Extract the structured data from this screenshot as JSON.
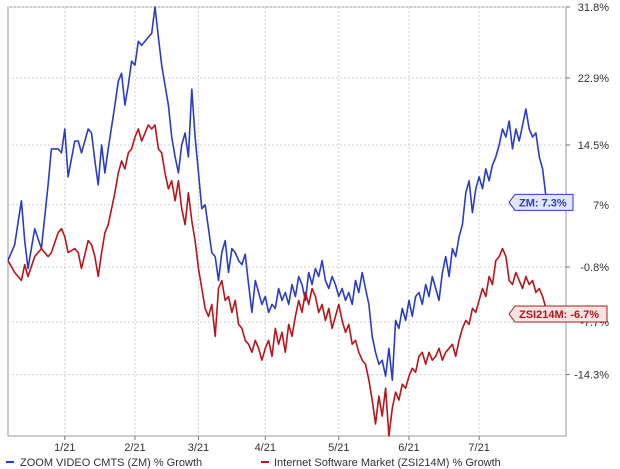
{
  "chart_data": {
    "type": "line",
    "title": "",
    "xlabel": "",
    "ylabel": "",
    "x_ticks": [
      "1/21",
      "2/21",
      "3/21",
      "4/21",
      "5/21",
      "6/21",
      "7/21"
    ],
    "y_ticks": [
      "31.8%",
      "22.9%",
      "14.5%",
      "7%",
      "-0.8%",
      "-7.7%",
      "-14.3%"
    ],
    "ylim": [
      -22.0,
      31.8
    ],
    "grid": true,
    "legend_position": "bottom",
    "series": [
      {
        "name": "ZOOM VIDEO CMTS (ZM) % Growth",
        "color": "#2a3cc7",
        "last_label": "ZM: 7.3%",
        "points": [
          [
            0,
            0.0
          ],
          [
            2,
            2.0
          ],
          [
            4,
            7.5
          ],
          [
            5,
            2.5
          ],
          [
            6,
            -1.0
          ],
          [
            8,
            4.0
          ],
          [
            10,
            1.5
          ],
          [
            12,
            9.5
          ],
          [
            13,
            14.0
          ],
          [
            15,
            14.0
          ],
          [
            16,
            13.5
          ],
          [
            17,
            16.5
          ],
          [
            18,
            10.5
          ],
          [
            20,
            15.0
          ],
          [
            21,
            15.0
          ],
          [
            22,
            13.5
          ],
          [
            24,
            16.5
          ],
          [
            25,
            16.0
          ],
          [
            26,
            12.5
          ],
          [
            27,
            9.5
          ],
          [
            28,
            14.5
          ],
          [
            29,
            11.0
          ],
          [
            30,
            14.0
          ],
          [
            32,
            19.5
          ],
          [
            33,
            22.5
          ],
          [
            34,
            23.5
          ],
          [
            35,
            19.5
          ],
          [
            36,
            22.0
          ],
          [
            37,
            25.0
          ],
          [
            38,
            24.5
          ],
          [
            39,
            27.5
          ],
          [
            40,
            27.0
          ],
          [
            42,
            28.0
          ],
          [
            43,
            28.5
          ],
          [
            44,
            31.8
          ],
          [
            45,
            28.0
          ],
          [
            46,
            24.5
          ],
          [
            47,
            22.0
          ],
          [
            48,
            19.5
          ],
          [
            49,
            15.5
          ],
          [
            50,
            13.0
          ],
          [
            51,
            11.0
          ],
          [
            52,
            14.5
          ],
          [
            53,
            16.0
          ],
          [
            54,
            13.0
          ],
          [
            55,
            21.5
          ],
          [
            56,
            15.5
          ],
          [
            57,
            11.0
          ],
          [
            58,
            6.5
          ],
          [
            59,
            7.0
          ],
          [
            60,
            4.0
          ],
          [
            61,
            1.0
          ],
          [
            62,
            0.5
          ],
          [
            63,
            -2.5
          ],
          [
            64,
            1.0
          ],
          [
            65,
            2.5
          ],
          [
            66,
            -1.5
          ],
          [
            67,
            1.5
          ],
          [
            68,
            1.0
          ],
          [
            69,
            0.0
          ],
          [
            70,
            -0.5
          ],
          [
            71,
            0.8
          ],
          [
            72,
            -3.0
          ],
          [
            73,
            -6.5
          ],
          [
            74,
            -2.5
          ],
          [
            75,
            -4.0
          ],
          [
            76,
            -5.5
          ],
          [
            77,
            -4.5
          ],
          [
            78,
            -6.5
          ],
          [
            79,
            -5.5
          ],
          [
            80,
            -6.0
          ],
          [
            81,
            -3.5
          ],
          [
            82,
            -5.0
          ],
          [
            83,
            -4.0
          ],
          [
            84,
            -5.5
          ],
          [
            85,
            -3.0
          ],
          [
            86,
            -4.5
          ],
          [
            87,
            -2.0
          ],
          [
            88,
            -3.0
          ],
          [
            89,
            -5.0
          ],
          [
            90,
            -1.5
          ],
          [
            91,
            -3.0
          ],
          [
            92,
            -1.0
          ],
          [
            93,
            -2.0
          ],
          [
            94,
            0.0
          ],
          [
            95,
            -2.5
          ],
          [
            96,
            -3.5
          ],
          [
            97,
            -2.0
          ],
          [
            98,
            -3.0
          ],
          [
            99,
            -4.5
          ],
          [
            100,
            -3.5
          ],
          [
            101,
            -5.0
          ],
          [
            102,
            -4.0
          ],
          [
            103,
            -5.5
          ],
          [
            104,
            -2.5
          ],
          [
            105,
            -4.0
          ],
          [
            106,
            -1.5
          ],
          [
            107,
            -3.5
          ],
          [
            108,
            -5.5
          ],
          [
            109,
            -9.5
          ],
          [
            110,
            -11.5
          ],
          [
            111,
            -13.0
          ],
          [
            112,
            -12.5
          ],
          [
            113,
            -14.5
          ],
          [
            114,
            -11.0
          ],
          [
            115,
            -15.0
          ],
          [
            116,
            -7.5
          ],
          [
            117,
            -8.5
          ],
          [
            118,
            -6.0
          ],
          [
            119,
            -7.5
          ],
          [
            120,
            -5.0
          ],
          [
            121,
            -7.0
          ],
          [
            122,
            -4.5
          ],
          [
            123,
            -4.0
          ],
          [
            124,
            -5.5
          ],
          [
            125,
            -3.0
          ],
          [
            126,
            -4.5
          ],
          [
            127,
            -2.0
          ],
          [
            128,
            -3.5
          ],
          [
            129,
            -5.0
          ],
          [
            130,
            -1.5
          ],
          [
            131,
            0.5
          ],
          [
            132,
            -2.0
          ],
          [
            133,
            1.5
          ],
          [
            134,
            0.5
          ],
          [
            135,
            3.0
          ],
          [
            136,
            4.5
          ],
          [
            137,
            8.5
          ],
          [
            138,
            10.0
          ],
          [
            139,
            6.0
          ],
          [
            140,
            9.0
          ],
          [
            141,
            10.5
          ],
          [
            142,
            9.0
          ],
          [
            143,
            11.5
          ],
          [
            144,
            10.0
          ],
          [
            145,
            12.0
          ],
          [
            146,
            13.0
          ],
          [
            147,
            14.5
          ],
          [
            148,
            16.5
          ],
          [
            149,
            15.5
          ],
          [
            150,
            17.5
          ],
          [
            151,
            14.0
          ],
          [
            152,
            16.5
          ],
          [
            153,
            15.0
          ],
          [
            154,
            17.0
          ],
          [
            155,
            19.0
          ],
          [
            156,
            16.5
          ],
          [
            157,
            15.5
          ],
          [
            158,
            16.0
          ],
          [
            159,
            13.0
          ],
          [
            160,
            11.5
          ],
          [
            161,
            8.0
          ],
          [
            162,
            7.3
          ]
        ]
      },
      {
        "name": "Internet Software Market (ZSI214M) % Growth",
        "color": "#b9141a",
        "last_label": "ZSI214M: -6.7%",
        "points": [
          [
            0,
            0.0
          ],
          [
            2,
            -1.5
          ],
          [
            4,
            -2.5
          ],
          [
            5,
            -0.5
          ],
          [
            6,
            -2.0
          ],
          [
            8,
            0.5
          ],
          [
            10,
            1.5
          ],
          [
            12,
            0.5
          ],
          [
            13,
            1.0
          ],
          [
            15,
            3.5
          ],
          [
            16,
            4.0
          ],
          [
            17,
            3.0
          ],
          [
            18,
            1.0
          ],
          [
            20,
            1.5
          ],
          [
            21,
            1.0
          ],
          [
            22,
            -1.0
          ],
          [
            24,
            2.5
          ],
          [
            25,
            2.0
          ],
          [
            26,
            0.5
          ],
          [
            27,
            -2.0
          ],
          [
            28,
            1.0
          ],
          [
            29,
            3.5
          ],
          [
            30,
            4.5
          ],
          [
            32,
            8.5
          ],
          [
            33,
            11.0
          ],
          [
            34,
            12.5
          ],
          [
            35,
            11.5
          ],
          [
            36,
            13.5
          ],
          [
            37,
            14.0
          ],
          [
            38,
            15.5
          ],
          [
            39,
            16.5
          ],
          [
            40,
            15.0
          ],
          [
            42,
            17.0
          ],
          [
            43,
            16.5
          ],
          [
            44,
            17.0
          ],
          [
            45,
            14.0
          ],
          [
            46,
            13.5
          ],
          [
            47,
            11.0
          ],
          [
            48,
            9.0
          ],
          [
            49,
            10.0
          ],
          [
            50,
            7.5
          ],
          [
            51,
            10.0
          ],
          [
            52,
            6.5
          ],
          [
            53,
            4.5
          ],
          [
            54,
            8.5
          ],
          [
            55,
            5.0
          ],
          [
            56,
            2.5
          ],
          [
            57,
            -1.0
          ],
          [
            58,
            -3.5
          ],
          [
            59,
            -6.0
          ],
          [
            60,
            -7.0
          ],
          [
            61,
            -5.5
          ],
          [
            62,
            -9.5
          ],
          [
            63,
            -3.5
          ],
          [
            64,
            -2.5
          ],
          [
            65,
            -5.0
          ],
          [
            66,
            -4.5
          ],
          [
            67,
            -6.5
          ],
          [
            68,
            -5.0
          ],
          [
            69,
            -8.0
          ],
          [
            70,
            -8.5
          ],
          [
            71,
            -10.0
          ],
          [
            72,
            -10.5
          ],
          [
            73,
            -11.5
          ],
          [
            74,
            -10.0
          ],
          [
            75,
            -11.0
          ],
          [
            76,
            -12.5
          ],
          [
            77,
            -11.0
          ],
          [
            78,
            -10.0
          ],
          [
            79,
            -12.0
          ],
          [
            80,
            -8.5
          ],
          [
            81,
            -10.5
          ],
          [
            82,
            -9.0
          ],
          [
            83,
            -11.5
          ],
          [
            84,
            -8.0
          ],
          [
            85,
            -9.5
          ],
          [
            86,
            -7.0
          ],
          [
            87,
            -5.0
          ],
          [
            88,
            -6.5
          ],
          [
            89,
            -4.0
          ],
          [
            90,
            -5.5
          ],
          [
            91,
            -3.5
          ],
          [
            92,
            -4.5
          ],
          [
            93,
            -6.5
          ],
          [
            94,
            -5.5
          ],
          [
            95,
            -7.5
          ],
          [
            96,
            -6.0
          ],
          [
            97,
            -8.5
          ],
          [
            98,
            -7.0
          ],
          [
            99,
            -5.5
          ],
          [
            100,
            -7.5
          ],
          [
            101,
            -9.0
          ],
          [
            102,
            -8.0
          ],
          [
            103,
            -10.5
          ],
          [
            104,
            -10.0
          ],
          [
            105,
            -11.5
          ],
          [
            106,
            -12.5
          ],
          [
            107,
            -13.0
          ],
          [
            108,
            -15.0
          ],
          [
            109,
            -17.5
          ],
          [
            110,
            -20.5
          ],
          [
            111,
            -17.0
          ],
          [
            112,
            -19.5
          ],
          [
            113,
            -16.0
          ],
          [
            114,
            -22.0
          ],
          [
            115,
            -18.5
          ],
          [
            116,
            -16.5
          ],
          [
            117,
            -17.5
          ],
          [
            118,
            -15.5
          ],
          [
            119,
            -16.0
          ],
          [
            120,
            -14.5
          ],
          [
            121,
            -13.5
          ],
          [
            122,
            -14.0
          ],
          [
            123,
            -12.0
          ],
          [
            124,
            -11.5
          ],
          [
            125,
            -13.0
          ],
          [
            126,
            -11.5
          ],
          [
            127,
            -12.5
          ],
          [
            128,
            -12.0
          ],
          [
            129,
            -11.0
          ],
          [
            130,
            -12.5
          ],
          [
            131,
            -11.5
          ],
          [
            132,
            -11.0
          ],
          [
            133,
            -10.5
          ],
          [
            134,
            -12.0
          ],
          [
            135,
            -10.0
          ],
          [
            136,
            -8.5
          ],
          [
            137,
            -7.5
          ],
          [
            138,
            -8.0
          ],
          [
            139,
            -6.0
          ],
          [
            140,
            -6.5
          ],
          [
            141,
            -5.0
          ],
          [
            142,
            -3.5
          ],
          [
            143,
            -4.5
          ],
          [
            144,
            -2.0
          ],
          [
            145,
            -3.0
          ],
          [
            146,
            0.0
          ],
          [
            147,
            0.5
          ],
          [
            148,
            1.5
          ],
          [
            149,
            0.5
          ],
          [
            150,
            -2.5
          ],
          [
            151,
            -3.0
          ],
          [
            152,
            -1.5
          ],
          [
            153,
            -2.5
          ],
          [
            154,
            -3.5
          ],
          [
            155,
            -2.0
          ],
          [
            156,
            -3.0
          ],
          [
            157,
            -2.5
          ],
          [
            158,
            -4.0
          ],
          [
            159,
            -3.5
          ],
          [
            160,
            -4.5
          ],
          [
            161,
            -6.0
          ],
          [
            162,
            -6.7
          ]
        ]
      }
    ]
  }
}
